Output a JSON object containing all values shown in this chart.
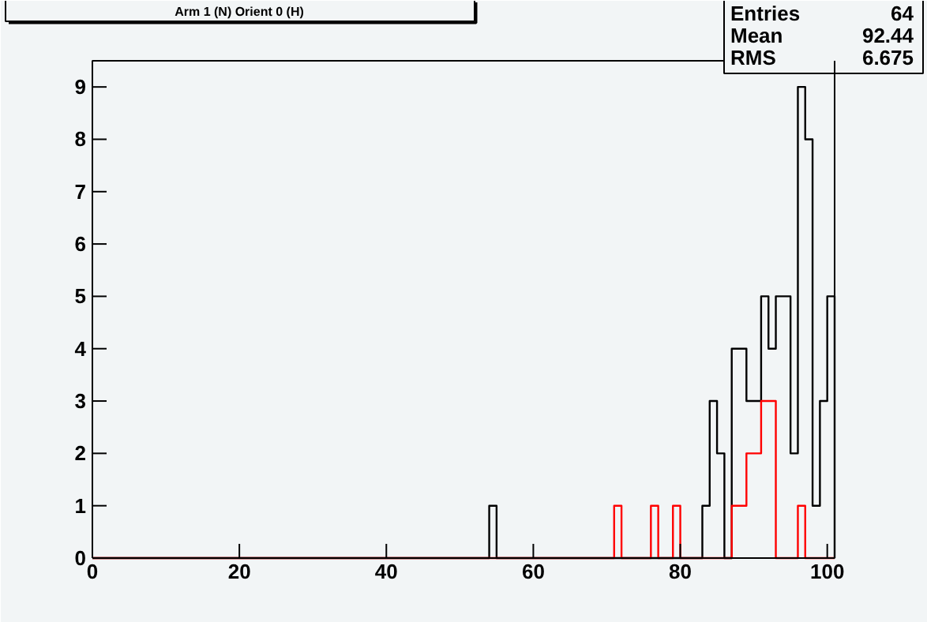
{
  "chart_data": {
    "type": "histogram",
    "title": "Arm 1 (N) Orient 0 (H)",
    "bins": [
      0,
      1,
      2,
      3,
      4,
      5,
      6,
      7,
      8,
      9,
      10,
      11,
      12,
      13,
      14,
      15,
      16,
      17,
      18,
      19,
      20,
      21,
      22,
      23,
      24,
      25,
      26,
      27,
      28,
      29,
      30,
      31,
      32,
      33,
      34,
      35,
      36,
      37,
      38,
      39,
      40,
      41,
      42,
      43,
      44,
      45,
      46,
      47,
      48,
      49,
      50,
      51,
      52,
      53,
      54,
      55,
      56,
      57,
      58,
      59,
      60,
      61,
      62,
      63,
      64,
      65,
      66,
      67,
      68,
      69,
      70,
      71,
      72,
      73,
      74,
      75,
      76,
      77,
      78,
      79,
      80,
      81,
      82,
      83,
      84,
      85,
      86,
      87,
      88,
      89,
      90,
      91,
      92,
      93,
      94,
      95,
      96,
      97,
      98,
      99,
      100,
      101
    ],
    "series": [
      {
        "color": "#000000",
        "values": [
          0,
          0,
          0,
          0,
          0,
          0,
          0,
          0,
          0,
          0,
          0,
          0,
          0,
          0,
          0,
          0,
          0,
          0,
          0,
          0,
          0,
          0,
          0,
          0,
          0,
          0,
          0,
          0,
          0,
          0,
          0,
          0,
          0,
          0,
          0,
          0,
          0,
          0,
          0,
          0,
          0,
          0,
          0,
          0,
          0,
          0,
          0,
          0,
          0,
          0,
          0,
          0,
          0,
          0,
          1,
          0,
          0,
          0,
          0,
          0,
          0,
          0,
          0,
          0,
          0,
          0,
          0,
          0,
          0,
          0,
          0,
          0,
          0,
          0,
          0,
          0,
          0,
          0,
          0,
          0,
          0,
          0,
          0,
          1,
          3,
          2,
          0,
          4,
          4,
          3,
          3,
          5,
          4,
          5,
          5,
          2,
          9,
          8,
          1,
          3,
          5
        ]
      },
      {
        "color": "#ff0000",
        "values": [
          0,
          0,
          0,
          0,
          0,
          0,
          0,
          0,
          0,
          0,
          0,
          0,
          0,
          0,
          0,
          0,
          0,
          0,
          0,
          0,
          0,
          0,
          0,
          0,
          0,
          0,
          0,
          0,
          0,
          0,
          0,
          0,
          0,
          0,
          0,
          0,
          0,
          0,
          0,
          0,
          0,
          0,
          0,
          0,
          0,
          0,
          0,
          0,
          0,
          0,
          0,
          0,
          0,
          0,
          0,
          0,
          0,
          0,
          0,
          0,
          0,
          0,
          0,
          0,
          0,
          0,
          0,
          0,
          0,
          0,
          0,
          1,
          0,
          0,
          0,
          0,
          1,
          0,
          0,
          1,
          0,
          0,
          0,
          0,
          0,
          0,
          0,
          1,
          1,
          2,
          2,
          3,
          3,
          0,
          0,
          0,
          1,
          0,
          0,
          0,
          0
        ]
      }
    ],
    "xlim": [
      0,
      101
    ],
    "ylim": [
      0,
      9.5
    ],
    "xticks": [
      0,
      20,
      40,
      60,
      80,
      100
    ],
    "yticks": [
      0,
      1,
      2,
      3,
      4,
      5,
      6,
      7,
      8,
      9
    ],
    "grid": false,
    "annotations": [
      "Entries 64",
      "Mean 92.44",
      "RMS 6.675"
    ]
  }
}
